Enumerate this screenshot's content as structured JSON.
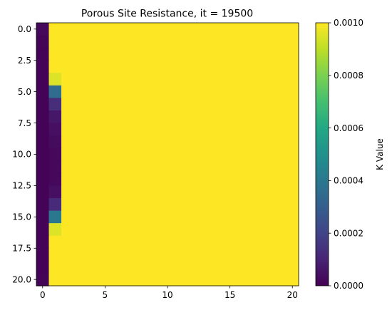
{
  "chart_data": {
    "type": "heatmap",
    "title": "Porous Site Resistance, it = 19500",
    "xlabel": "",
    "ylabel": "",
    "colorbar_label": "K Value",
    "colormap": "viridis",
    "grid": false,
    "xlim": [
      -0.5,
      20.5
    ],
    "ylim": [
      20.5,
      -0.5
    ],
    "vmin": 0.0,
    "vmax": 0.001,
    "rows": 21,
    "cols": 21,
    "xticks": [
      0,
      5,
      10,
      15,
      20
    ],
    "xtick_labels": [
      "0",
      "5",
      "10",
      "15",
      "20"
    ],
    "yticks": [
      0,
      2.5,
      5,
      7.5,
      10,
      12.5,
      15,
      17.5,
      20
    ],
    "ytick_labels": [
      "0.0",
      "2.5",
      "5.0",
      "7.5",
      "10.0",
      "12.5",
      "15.0",
      "17.5",
      "20.0"
    ],
    "colorbar_ticks": [
      0.0,
      0.0002,
      0.0004,
      0.0006,
      0.0008,
      0.001
    ],
    "colorbar_tick_labels": [
      "0.0000",
      "0.0002",
      "0.0004",
      "0.0006",
      "0.0008",
      "0.0010"
    ],
    "column0_values": [
      2e-05,
      1e-05,
      5e-06,
      5e-06,
      5e-06,
      5e-06,
      5e-06,
      5e-06,
      5e-06,
      5e-06,
      5e-06,
      5e-06,
      5e-06,
      5e-06,
      5e-06,
      5e-06,
      5e-06,
      5e-06,
      5e-06,
      5e-06,
      1e-05
    ],
    "column1_values": [
      0.001,
      0.001,
      0.001,
      0.001,
      0.00095,
      0.00035,
      0.00013,
      6e-05,
      4e-05,
      3e-05,
      2e-05,
      2e-05,
      2e-05,
      4e-05,
      0.00012,
      0.0004,
      0.00095,
      0.001,
      0.001,
      0.001,
      0.001
    ],
    "default_value": 0.001
  }
}
